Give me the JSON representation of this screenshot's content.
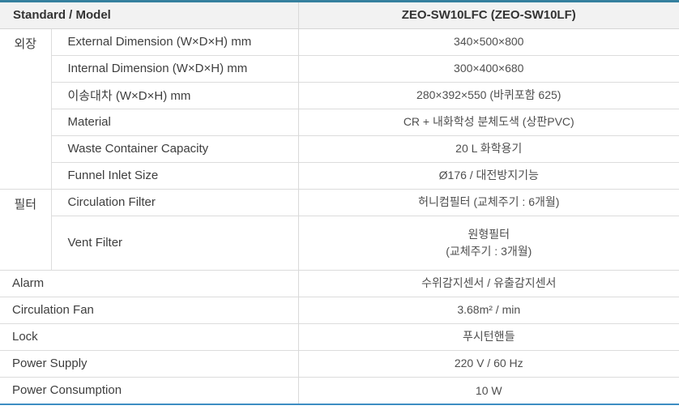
{
  "colors": {
    "top_border": "#35809e",
    "bottom_border": "#3d8dc3",
    "header_background": "#f2f2f2",
    "row_line": "#dcdcdc",
    "label_text": "#3e3e3e",
    "value_text": "#4f4f4f"
  },
  "table": {
    "header": {
      "left": "Standard / Model",
      "right": "ZEO-SW10LFC (ZEO-SW10LF)"
    },
    "sections": [
      {
        "category": "외장",
        "rows": [
          {
            "label": "External Dimension (W×D×H) mm",
            "value": "340×500×800"
          },
          {
            "label": "Internal Dimension (W×D×H) mm",
            "value": "300×400×680"
          },
          {
            "label": "이송대차 (W×D×H) mm",
            "value": "280×392×550 (바퀴포함 625)"
          },
          {
            "label": "Material",
            "value": "CR + 내화학성 분체도색 (상판PVC)"
          },
          {
            "label": "Waste Container Capacity",
            "value": "20 L 화학용기"
          },
          {
            "label": "Funnel Inlet Size",
            "value": "Ø176 / 대전방지기능"
          }
        ]
      },
      {
        "category": "필터",
        "rows": [
          {
            "label": "Circulation Filter",
            "value": "허니컴필터 (교체주기 : 6개월)"
          },
          {
            "label": "Vent Filter",
            "value": "원형필터\n(교체주기 : 3개월)"
          }
        ]
      }
    ],
    "simple_rows": [
      {
        "label": "Alarm",
        "value": "수위감지센서 / 유출감지센서"
      },
      {
        "label": "Circulation Fan",
        "value": "3.68m² / min"
      },
      {
        "label": "Lock",
        "value": "푸시턴핸들"
      },
      {
        "label": "Power Supply",
        "value": "220 V / 60 Hz"
      },
      {
        "label": "Power Consumption",
        "value": "10 W"
      }
    ]
  }
}
